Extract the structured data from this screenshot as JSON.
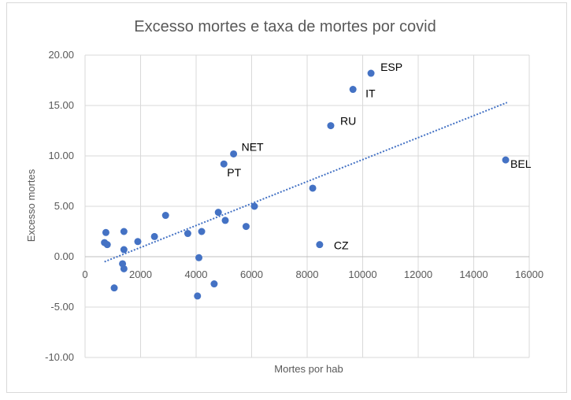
{
  "chart_data": {
    "type": "scatter",
    "title": "Excesso mortes e taxa de mortes por covid",
    "xlabel": "Mortes por hab",
    "ylabel": "Excesso mortes",
    "xlim": [
      0,
      16000
    ],
    "ylim": [
      -10,
      20
    ],
    "xticks": [
      0,
      2000,
      4000,
      6000,
      8000,
      10000,
      12000,
      14000,
      16000
    ],
    "xtick_labels": [
      "0",
      "2000",
      "4000",
      "6000",
      "8000",
      "10000",
      "12000",
      "14000",
      "16000"
    ],
    "yticks": [
      -10,
      -5,
      0,
      5,
      10,
      15,
      20
    ],
    "ytick_labels": [
      "-10.00",
      "-5.00",
      "0.00",
      "5.00",
      "10.00",
      "15.00",
      "20.00"
    ],
    "grid": "vertical-and-horizontal",
    "marker_color": "#4472c4",
    "trendline": {
      "type": "linear",
      "style": "dotted",
      "color": "#4472c4",
      "from": [
        700,
        -0.5
      ],
      "to": [
        15200,
        15.3
      ]
    },
    "points": [
      {
        "x": 10300,
        "y": 18.2,
        "label": "ESP"
      },
      {
        "x": 9650,
        "y": 16.6,
        "label": "IT"
      },
      {
        "x": 8850,
        "y": 13.0,
        "label": "RU"
      },
      {
        "x": 5350,
        "y": 10.2,
        "label": "NET"
      },
      {
        "x": 5000,
        "y": 9.2,
        "label": "PT"
      },
      {
        "x": 15150,
        "y": 9.6,
        "label": "BEL"
      },
      {
        "x": 8450,
        "y": 1.2,
        "label": "CZ"
      },
      {
        "x": 8200,
        "y": 6.8,
        "label": ""
      },
      {
        "x": 6100,
        "y": 5.0,
        "label": ""
      },
      {
        "x": 4800,
        "y": 4.4,
        "label": ""
      },
      {
        "x": 5050,
        "y": 3.6,
        "label": ""
      },
      {
        "x": 5800,
        "y": 3.0,
        "label": ""
      },
      {
        "x": 4200,
        "y": 2.5,
        "label": ""
      },
      {
        "x": 3700,
        "y": 2.3,
        "label": ""
      },
      {
        "x": 2900,
        "y": 4.1,
        "label": ""
      },
      {
        "x": 2500,
        "y": 2.0,
        "label": ""
      },
      {
        "x": 1900,
        "y": 1.5,
        "label": ""
      },
      {
        "x": 1400,
        "y": 2.5,
        "label": ""
      },
      {
        "x": 1400,
        "y": 0.7,
        "label": ""
      },
      {
        "x": 750,
        "y": 2.4,
        "label": ""
      },
      {
        "x": 700,
        "y": 1.4,
        "label": ""
      },
      {
        "x": 800,
        "y": 1.2,
        "label": ""
      },
      {
        "x": 4100,
        "y": -0.1,
        "label": ""
      },
      {
        "x": 1350,
        "y": -0.7,
        "label": ""
      },
      {
        "x": 1400,
        "y": -1.2,
        "label": ""
      },
      {
        "x": 1050,
        "y": -3.1,
        "label": ""
      },
      {
        "x": 4650,
        "y": -2.7,
        "label": ""
      },
      {
        "x": 4050,
        "y": -3.9,
        "label": ""
      }
    ]
  }
}
